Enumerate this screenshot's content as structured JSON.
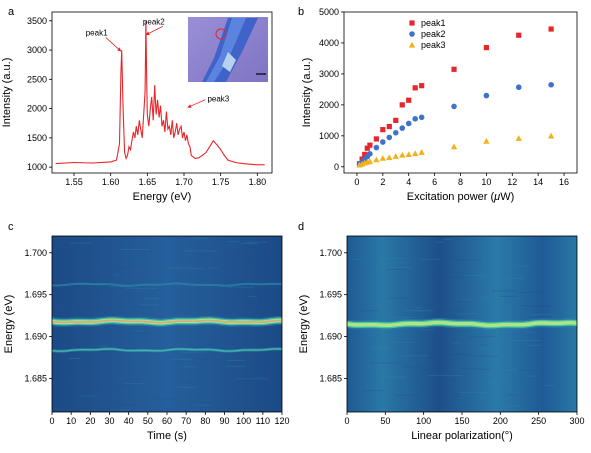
{
  "chart_data": [
    {
      "panel": "a",
      "type": "line",
      "xlabel": "Energy (eV)",
      "ylabel": "Intensity (a.u.)",
      "xlim": [
        1.52,
        1.82
      ],
      "ylim": [
        900,
        3650
      ],
      "xticks": [
        1.55,
        1.6,
        1.65,
        1.7,
        1.75,
        1.8
      ],
      "xtick_labels": [
        "1.55",
        "1.60",
        "1.65",
        "1.70",
        "1.75",
        "1.80"
      ],
      "yticks": [
        1000,
        1500,
        2000,
        2500,
        3000,
        3500
      ],
      "ytick_labels": [
        "1000",
        "1500",
        "2000",
        "2500",
        "3000",
        "3500"
      ],
      "series": [
        {
          "color": "#e8262a",
          "x": [
            1.525,
            1.55,
            1.575,
            1.6,
            1.608,
            1.612,
            1.614,
            1.615,
            1.617,
            1.619,
            1.621,
            1.623,
            1.625,
            1.627,
            1.629,
            1.631,
            1.633,
            1.635,
            1.637,
            1.639,
            1.641,
            1.643,
            1.645,
            1.647,
            1.648,
            1.649,
            1.65,
            1.652,
            1.654,
            1.656,
            1.658,
            1.66,
            1.662,
            1.664,
            1.666,
            1.668,
            1.67,
            1.672,
            1.674,
            1.676,
            1.678,
            1.68,
            1.682,
            1.684,
            1.686,
            1.688,
            1.69,
            1.692,
            1.694,
            1.696,
            1.698,
            1.7,
            1.702,
            1.704,
            1.706,
            1.708,
            1.71,
            1.715,
            1.72,
            1.725,
            1.73,
            1.735,
            1.74,
            1.745,
            1.75,
            1.755,
            1.76,
            1.77,
            1.78,
            1.79,
            1.8,
            1.81
          ],
          "y": [
            1060,
            1080,
            1070,
            1090,
            1120,
            1400,
            2600,
            3000,
            2000,
            1250,
            1150,
            1200,
            1350,
            1300,
            1450,
            1600,
            1500,
            1700,
            1550,
            1800,
            1650,
            1500,
            1900,
            2300,
            3500,
            2600,
            1900,
            1700,
            2000,
            2200,
            1800,
            2400,
            1900,
            2150,
            1850,
            2050,
            1700,
            1800,
            1600,
            1950,
            1650,
            1700,
            1550,
            1800,
            1500,
            1600,
            1750,
            1550,
            1650,
            1700,
            1500,
            1600,
            1450,
            1550,
            1400,
            1350,
            1200,
            1150,
            1160,
            1200,
            1250,
            1350,
            1450,
            1380,
            1300,
            1200,
            1120,
            1080,
            1060,
            1050,
            1040,
            1040
          ]
        }
      ],
      "annotations": [
        {
          "text": "peak1",
          "x": 1.566,
          "y": 3250,
          "ax": 1.614,
          "ay": 2980
        },
        {
          "text": "peak2",
          "x": 1.644,
          "y": 3440,
          "ax": 1.648,
          "ay": 3260
        },
        {
          "text": "peak3",
          "x": 1.732,
          "y": 2120,
          "ax": 1.705,
          "ay": 2020
        }
      ],
      "legend": "none",
      "grid": false
    },
    {
      "panel": "b",
      "type": "scatter",
      "xlabel": "Excitation power (",
      "xlabel_symbol": "μ",
      "xlabel_tail": "W)",
      "ylabel": "Intensity (a.u.)",
      "xlim": [
        -1,
        17
      ],
      "ylim": [
        -200,
        5000
      ],
      "xticks": [
        0,
        2,
        4,
        6,
        8,
        10,
        12,
        14,
        16
      ],
      "xtick_labels": [
        "0",
        "2",
        "4",
        "6",
        "8",
        "10",
        "12",
        "14",
        "16"
      ],
      "yticks": [
        0,
        1000,
        2000,
        3000,
        4000,
        5000
      ],
      "ytick_labels": [
        "0",
        "1000",
        "2000",
        "3000",
        "4000",
        "5000"
      ],
      "legend": "top-left",
      "grid": false,
      "series": [
        {
          "name": "peak1",
          "marker": "square",
          "color": "#e8262a",
          "x": [
            0.2,
            0.4,
            0.6,
            0.8,
            1.0,
            1.5,
            2.0,
            2.5,
            3.0,
            3.5,
            4.0,
            4.5,
            5.0,
            7.5,
            10,
            12.5,
            15
          ],
          "y": [
            100,
            250,
            400,
            600,
            700,
            900,
            1200,
            1300,
            1500,
            2000,
            2150,
            2550,
            2620,
            3150,
            3850,
            4250,
            4450
          ]
        },
        {
          "name": "peak2",
          "marker": "circle",
          "color": "#3f72c9",
          "x": [
            0.2,
            0.4,
            0.6,
            0.8,
            1.0,
            1.5,
            2.0,
            2.5,
            3.0,
            3.5,
            4.0,
            4.5,
            5.0,
            7.5,
            10,
            12.5,
            15
          ],
          "y": [
            80,
            150,
            250,
            330,
            420,
            620,
            800,
            950,
            1100,
            1250,
            1400,
            1550,
            1600,
            1950,
            2300,
            2570,
            2650
          ]
        },
        {
          "name": "peak3",
          "marker": "triangle",
          "color": "#f2b21e",
          "x": [
            0.2,
            0.4,
            0.6,
            0.8,
            1.0,
            1.5,
            2.0,
            2.5,
            3.0,
            3.5,
            4.0,
            4.5,
            5.0,
            7.5,
            10,
            12.5,
            15
          ],
          "y": [
            60,
            90,
            130,
            150,
            180,
            230,
            280,
            300,
            340,
            380,
            400,
            430,
            470,
            650,
            830,
            920,
            1000
          ]
        }
      ]
    },
    {
      "panel": "c",
      "type": "heatmap",
      "xlabel": "Time (s)",
      "ylabel": "Energy (eV)",
      "xlim": [
        0,
        120
      ],
      "ylim": [
        1.681,
        1.702
      ],
      "xticks": [
        0,
        10,
        20,
        30,
        40,
        50,
        60,
        70,
        80,
        90,
        100,
        110,
        120
      ],
      "xtick_labels": [
        "0",
        "10",
        "20",
        "30",
        "40",
        "50",
        "60",
        "70",
        "80",
        "90",
        "100",
        "110",
        "120"
      ],
      "yticks": [
        1.685,
        1.69,
        1.695,
        1.7
      ],
      "ytick_labels": [
        "1.685",
        "1.690",
        "1.695",
        "1.700"
      ],
      "bands": [
        {
          "energy": 1.6918,
          "intensity": 1.0
        },
        {
          "energy": 1.6884,
          "intensity": 0.35
        },
        {
          "energy": 1.6962,
          "intensity": 0.15
        }
      ],
      "colors": [
        "#1f4f8f",
        "#2a86a8",
        "#4fc8a8",
        "#b7ea7a",
        "#f08a8a"
      ]
    },
    {
      "panel": "d",
      "type": "heatmap",
      "xlabel": "Linear polarization(°)",
      "ylabel": "Energy (eV)",
      "xlim": [
        0,
        300
      ],
      "ylim": [
        1.681,
        1.702
      ],
      "xticks": [
        0,
        50,
        100,
        150,
        200,
        250,
        300
      ],
      "xtick_labels": [
        "0",
        "50",
        "100",
        "150",
        "200",
        "250",
        "300"
      ],
      "yticks": [
        1.685,
        1.69,
        1.695,
        1.7
      ],
      "ytick_labels": [
        "1.685",
        "1.690",
        "1.695",
        "1.700"
      ],
      "bands": [
        {
          "energy": 1.6915,
          "intensity": 0.85
        }
      ],
      "colors": [
        "#1f4f8f",
        "#2a86a8",
        "#4fc8a8",
        "#b7ea7a"
      ]
    }
  ]
}
